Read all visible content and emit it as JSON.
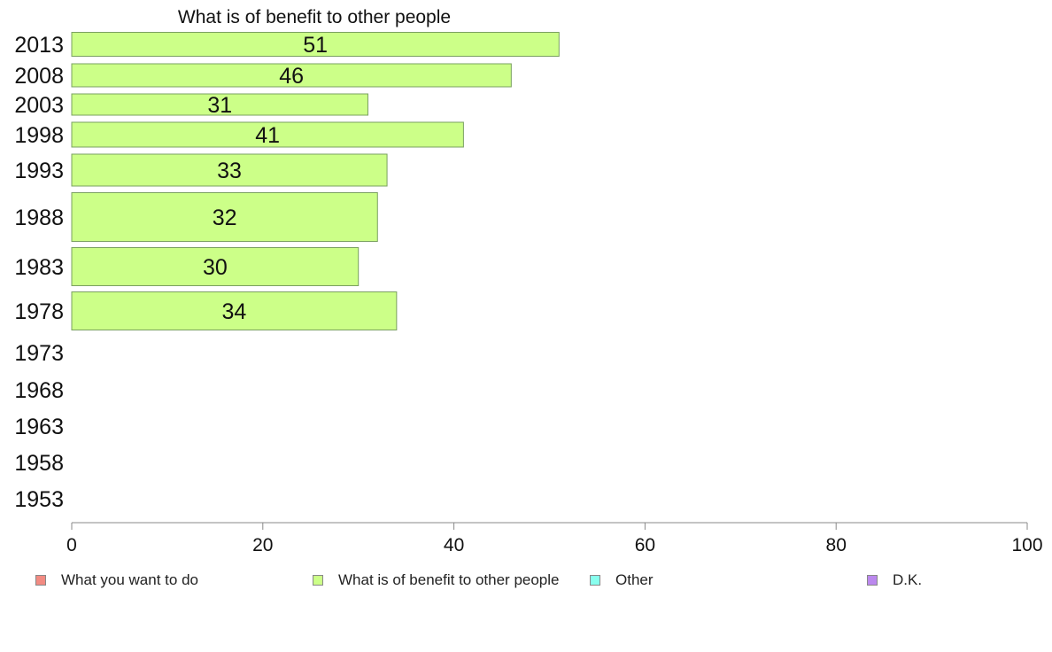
{
  "chart_data": {
    "type": "bar",
    "orientation": "horizontal",
    "title": "What is of benefit to other people",
    "categories": [
      "2013",
      "2008",
      "2003",
      "1998",
      "1993",
      "1988",
      "1983",
      "1978",
      "1973",
      "1968",
      "1963",
      "1958",
      "1953"
    ],
    "series": [
      {
        "name": "What is of benefit to other people",
        "values": [
          51,
          46,
          31,
          41,
          33,
          32,
          30,
          34,
          null,
          null,
          null,
          null,
          null
        ],
        "color": "#ccff88"
      }
    ],
    "xlim": [
      0,
      100
    ],
    "xticks": [
      "0",
      "20",
      "40",
      "60",
      "80",
      "100"
    ],
    "grid": false,
    "legend": {
      "placement": "bottom",
      "entries": [
        {
          "label": "What you want to do",
          "color": "#f28b82"
        },
        {
          "label": "What is of benefit to other people",
          "color": "#ccff88"
        },
        {
          "label": "Other",
          "color": "#88ffee"
        },
        {
          "label": "D.K.",
          "color": "#bb88ee"
        }
      ]
    }
  }
}
